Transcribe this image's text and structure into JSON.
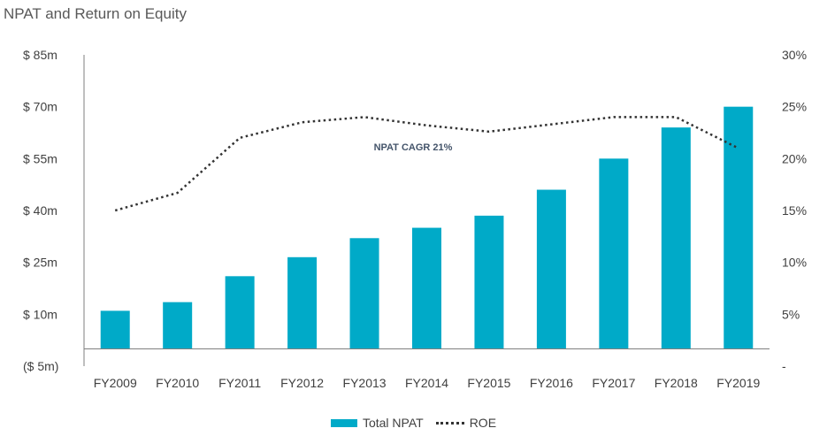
{
  "title": "NPAT and Return on Equity",
  "colors": {
    "bar": "#00aac8",
    "line": "#333333",
    "axis": "#7f7f7f"
  },
  "chart_data": {
    "type": "bar",
    "categories": [
      "FY2009",
      "FY2010",
      "FY2011",
      "FY2012",
      "FY2013",
      "FY2014",
      "FY2015",
      "FY2016",
      "FY2017",
      "FY2018",
      "FY2019"
    ],
    "series": [
      {
        "name": "Total NPAT",
        "type": "bar",
        "axis": "left",
        "values": [
          11,
          13.5,
          21,
          26.5,
          32,
          35,
          38.5,
          46,
          55,
          64,
          70
        ]
      },
      {
        "name": "ROE",
        "type": "line",
        "style": "dotted",
        "axis": "right",
        "values": [
          15,
          16.7,
          22,
          23.5,
          24,
          23.2,
          22.6,
          23.3,
          24,
          24,
          21
        ]
      }
    ],
    "left_axis": {
      "min": -5,
      "max": 85,
      "step": 15,
      "tick_labels": [
        "($ 5m)",
        "$ 10m",
        "$ 25m",
        "$ 40m",
        "$ 55m",
        "$ 70m",
        "$ 85m"
      ]
    },
    "right_axis": {
      "min": 0,
      "max": 30,
      "step": 5,
      "tick_labels": [
        "-",
        "5%",
        "10%",
        "15%",
        "20%",
        "25%",
        "30%"
      ]
    },
    "annotation": "NPAT CAGR 21%",
    "legend": {
      "position": "bottom",
      "labels": [
        "Total NPAT",
        "ROE"
      ]
    }
  }
}
